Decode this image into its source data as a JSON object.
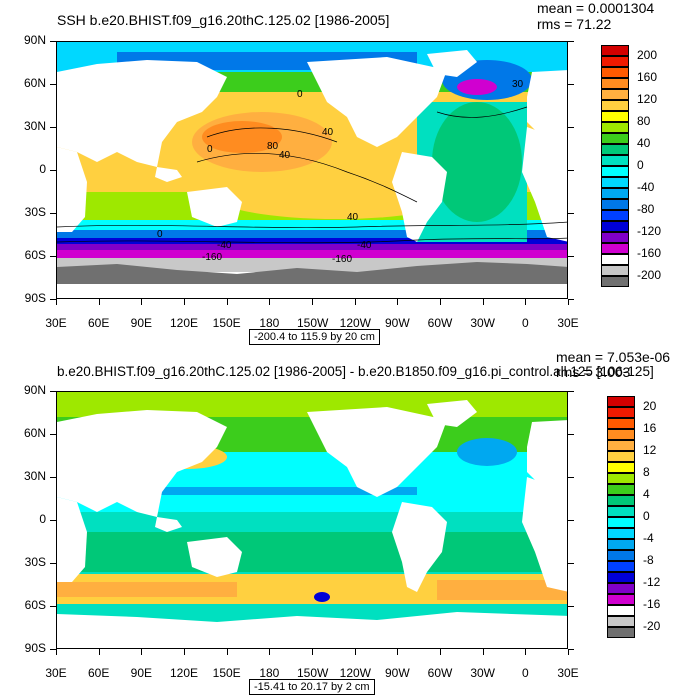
{
  "chart_data": [
    {
      "type": "heatmap",
      "title": "SSH b.e20.BHIST.f09_g16.20thC.125.02 [1986-2005]",
      "stats": {
        "mean": "mean = 0.0001304",
        "rms": "rms = 71.22"
      },
      "x_ticks": [
        "30E",
        "60E",
        "90E",
        "120E",
        "150E",
        "180",
        "150W",
        "120W",
        "90W",
        "60W",
        "30W",
        "0",
        "30E"
      ],
      "y_ticks": [
        "90N",
        "60N",
        "30N",
        "0",
        "30S",
        "60S",
        "90S"
      ],
      "range_label": "-200.4 to 115.9 by 20 cm",
      "colorbar": {
        "labels": [
          "200",
          "160",
          "120",
          "80",
          "40",
          "0",
          "-40",
          "-80",
          "-120",
          "-160",
          "-200"
        ],
        "colors": [
          "#d30000",
          "#f01a00",
          "#ff5a00",
          "#ff8c20",
          "#ffaf40",
          "#ffd040",
          "#ffff00",
          "#9ee800",
          "#3ccd1c",
          "#00c878",
          "#00e0c0",
          "#00ffff",
          "#00d8ff",
          "#00a8f0",
          "#0078e8",
          "#0040ff",
          "#0000d8",
          "#8000c8",
          "#d000d0",
          "#ffffff",
          "#c8c8c8",
          "#707070"
        ]
      },
      "contour_labels": [
        "0",
        "40",
        "80",
        "40",
        "0",
        "40",
        "0",
        "-40",
        "-160",
        "-40",
        "-160",
        "30"
      ]
    },
    {
      "type": "heatmap",
      "title": "b.e20.BHIST.f09_g16.20thC.125.02 [1986-2005] - b.e20.B1850.f09_g16.pi_control.all.125 [106-125]",
      "stats": {
        "mean": "mean = 7.053e-06",
        "rms": "rms = 3.003"
      },
      "x_ticks": [
        "30E",
        "60E",
        "90E",
        "120E",
        "150E",
        "180",
        "150W",
        "120W",
        "90W",
        "60W",
        "30W",
        "0",
        "30E"
      ],
      "y_ticks": [
        "90N",
        "60N",
        "30N",
        "0",
        "30S",
        "60S",
        "90S"
      ],
      "range_label": "-15.41 to 20.17 by 2 cm",
      "colorbar": {
        "labels": [
          "20",
          "16",
          "12",
          "8",
          "4",
          "0",
          "-4",
          "-8",
          "-12",
          "-16",
          "-20"
        ],
        "colors": [
          "#d30000",
          "#f01a00",
          "#ff5a00",
          "#ff8c20",
          "#ffaf40",
          "#ffd040",
          "#ffff00",
          "#9ee800",
          "#3ccd1c",
          "#00c878",
          "#00e0c0",
          "#00ffff",
          "#00d8ff",
          "#00a8f0",
          "#0078e8",
          "#0040ff",
          "#0000d8",
          "#8000c8",
          "#d000d0",
          "#ffffff",
          "#c8c8c8",
          "#707070"
        ]
      }
    }
  ]
}
